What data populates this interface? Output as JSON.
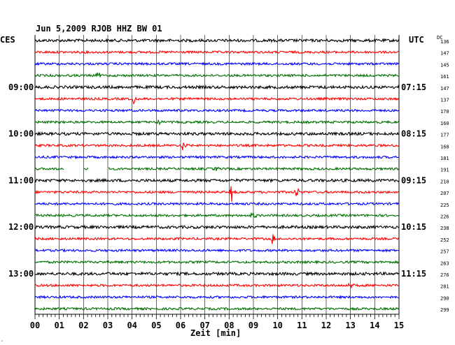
{
  "chart_data": {
    "type": "line",
    "title": "Jun 5,2009   RJOB HHZ BW 01",
    "left_axis_header": "CES",
    "right_axis_header": "UTC",
    "dc_header": "DC",
    "xlabel": "Zeit [min]",
    "x_ticks": [
      "00",
      "01",
      "02",
      "03",
      "04",
      "05",
      "06",
      "07",
      "08",
      "09",
      "10",
      "11",
      "12",
      "13",
      "14",
      "15"
    ],
    "xlim": [
      0,
      15
    ],
    "grid": true,
    "left_time_labels": [
      {
        "trace": 4,
        "text": "09:00"
      },
      {
        "trace": 8,
        "text": "10:00"
      },
      {
        "trace": 12,
        "text": "11:00"
      },
      {
        "trace": 16,
        "text": "12:00"
      },
      {
        "trace": 20,
        "text": "13:00"
      }
    ],
    "right_time_labels": [
      {
        "trace": 4,
        "text": "07:15"
      },
      {
        "trace": 8,
        "text": "08:15"
      },
      {
        "trace": 12,
        "text": "09:15"
      },
      {
        "trace": 16,
        "text": "10:15"
      },
      {
        "trace": 20,
        "text": "11:15"
      }
    ],
    "trace_colors": [
      "#000000",
      "#ff0000",
      "#0000ff",
      "#007000"
    ],
    "dc_values": [
      "136",
      "147",
      "145",
      "161",
      "147",
      "137",
      "170",
      "160",
      "177",
      "168",
      "181",
      "191",
      "210",
      "207",
      "225",
      "226",
      "238",
      "252",
      "257",
      "263",
      "276",
      "281",
      "290",
      "299"
    ],
    "events": [
      {
        "trace": 5,
        "minute": 4.1,
        "amplitude": 12
      },
      {
        "trace": 7,
        "minute": 5.1,
        "amplitude": 4
      },
      {
        "trace": 9,
        "minute": 6.1,
        "amplitude": 12
      },
      {
        "trace": 13,
        "minute": 8.1,
        "amplitude": 14
      },
      {
        "trace": 13,
        "minute": 10.8,
        "amplitude": 13
      },
      {
        "trace": 15,
        "minute": 9.0,
        "amplitude": 10
      },
      {
        "trace": 17,
        "minute": 9.8,
        "amplitude": 10
      },
      {
        "trace": 21,
        "minute": 13.0,
        "amplitude": 10
      },
      {
        "trace": 3,
        "minute": 2.6,
        "amplitude": 6
      },
      {
        "trace": 11,
        "minute": 7.5,
        "amplitude": 4
      }
    ],
    "gaps": [
      {
        "trace": 11,
        "from_minute": 1.2,
        "to_minute": 2.0
      },
      {
        "trace": 11,
        "from_minute": 2.2,
        "to_minute": 3.0
      }
    ]
  },
  "corner_mark": "‸"
}
